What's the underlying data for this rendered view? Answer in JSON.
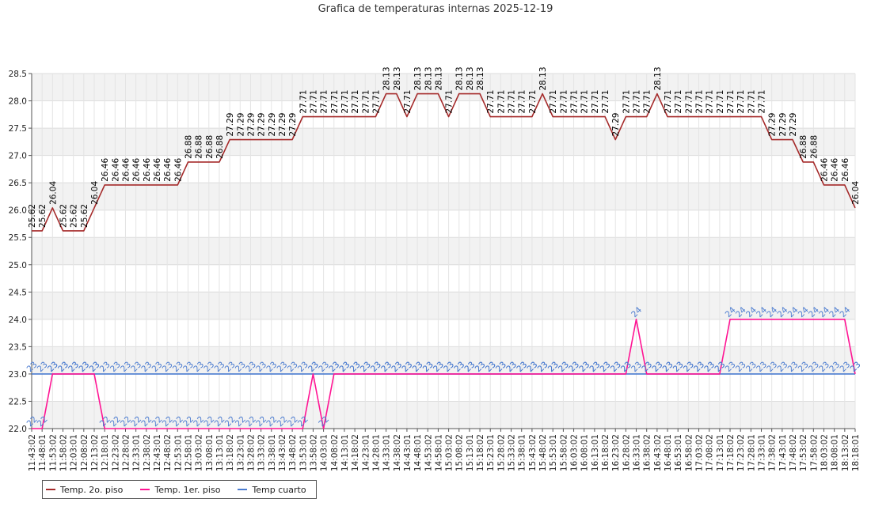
{
  "chart_data": {
    "type": "line",
    "title": "Grafica de temperaturas internas 2025-12-19",
    "xlabel": "",
    "ylabel": "",
    "ylim": [
      22.0,
      28.5
    ],
    "yticks": [
      "22.0",
      "22.5",
      "23.0",
      "23.5",
      "24.0",
      "24.5",
      "25.0",
      "25.5",
      "26.0",
      "26.5",
      "27.0",
      "27.5",
      "28.0",
      "28.5"
    ],
    "grid": true,
    "legend": "bottom-left",
    "x": [
      "11:43:02",
      "11:48:01",
      "11:53:02",
      "11:58:02",
      "12:03:01",
      "12:08:02",
      "12:13:02",
      "12:18:01",
      "12:23:02",
      "12:28:02",
      "12:33:01",
      "12:38:02",
      "12:43:01",
      "12:48:02",
      "12:53:01",
      "12:58:01",
      "13:03:02",
      "13:08:01",
      "13:13:01",
      "13:18:02",
      "13:23:01",
      "13:28:02",
      "13:33:02",
      "13:38:01",
      "13:43:02",
      "13:48:02",
      "13:53:01",
      "13:58:02",
      "14:03:01",
      "14:08:02",
      "14:13:01",
      "14:18:02",
      "14:23:01",
      "14:28:01",
      "14:33:01",
      "14:38:02",
      "14:43:01",
      "14:48:01",
      "14:53:02",
      "14:58:01",
      "15:03:02",
      "15:08:02",
      "15:13:01",
      "15:18:02",
      "15:23:01",
      "15:28:02",
      "15:33:02",
      "15:38:01",
      "15:43:02",
      "15:48:02",
      "15:53:01",
      "15:58:02",
      "16:03:02",
      "16:08:01",
      "16:13:01",
      "16:18:02",
      "16:23:02",
      "16:28:02",
      "16:33:01",
      "16:38:02",
      "16:43:02",
      "16:48:01",
      "16:53:01",
      "16:58:02",
      "17:03:02",
      "17:08:02",
      "17:13:01",
      "17:18:02",
      "17:23:02",
      "17:28:01",
      "17:33:01",
      "17:38:02",
      "17:43:01",
      "17:48:02",
      "17:53:02",
      "17:58:02",
      "18:03:02",
      "18:08:01",
      "18:13:02",
      "18:18:01"
    ],
    "series": [
      {
        "name": "Temp. 2o. piso",
        "color": "#a52a2a",
        "label_color": "#000000",
        "values": [
          25.62,
          25.62,
          26.04,
          25.62,
          25.62,
          25.62,
          26.04,
          26.46,
          26.46,
          26.46,
          26.46,
          26.46,
          26.46,
          26.46,
          26.46,
          26.88,
          26.88,
          26.88,
          26.88,
          27.29,
          27.29,
          27.29,
          27.29,
          27.29,
          27.29,
          27.29,
          27.71,
          27.71,
          27.71,
          27.71,
          27.71,
          27.71,
          27.71,
          27.71,
          28.13,
          28.13,
          27.71,
          28.13,
          28.13,
          28.13,
          27.71,
          28.13,
          28.13,
          28.13,
          27.71,
          27.71,
          27.71,
          27.71,
          27.71,
          28.13,
          27.71,
          27.71,
          27.71,
          27.71,
          27.71,
          27.71,
          27.29,
          27.71,
          27.71,
          27.71,
          28.13,
          27.71,
          27.71,
          27.71,
          27.71,
          27.71,
          27.71,
          27.71,
          27.71,
          27.71,
          27.71,
          27.29,
          27.29,
          27.29,
          26.88,
          26.88,
          26.46,
          26.46,
          26.46,
          26.04
        ],
        "labels": [
          "25.62",
          "25.62",
          "26.04",
          "25.62",
          "25.62",
          "25.62",
          "26.04",
          "26.46",
          "26.46",
          "26.46",
          "26.46",
          "26.46",
          "26.46",
          "26.46",
          "26.46",
          "26.88",
          "26.88",
          "26.88",
          "26.88",
          "27.29",
          "27.29",
          "27.29",
          "27.29",
          "27.29",
          "27.29",
          "27.29",
          "27.71",
          "27.71",
          "27.71",
          "27.71",
          "27.71",
          "27.71",
          "27.71",
          "27.71",
          "28.13",
          "28.13",
          "27.71",
          "28.13",
          "28.13",
          "28.13",
          "27.71",
          "28.13",
          "28.13",
          "28.13",
          "27.71",
          "27.71",
          "27.71",
          "27.71",
          "27.71",
          "28.13",
          "27.71",
          "27.71",
          "27.71",
          "27.71",
          "27.71",
          "27.71",
          "27.29",
          "27.71",
          "27.71",
          "27.71",
          "28.13",
          "27.71",
          "27.71",
          "27.71",
          "27.71",
          "27.71",
          "27.71",
          "27.71",
          "27.71",
          "27.71",
          "27.71",
          "27.29",
          "27.29",
          "27.29",
          "26.88",
          "26.88",
          "26.46",
          "26.46",
          "26.46",
          "26.04"
        ]
      },
      {
        "name": "Temp. 1er. piso",
        "color": "#ff1493",
        "label_color": "#4a7bd0",
        "values": [
          22,
          22,
          23,
          23,
          23,
          23,
          23,
          22,
          22,
          22,
          22,
          22,
          22,
          22,
          22,
          22,
          22,
          22,
          22,
          22,
          22,
          22,
          22,
          22,
          22,
          22,
          22,
          23,
          22,
          23,
          23,
          23,
          23,
          23,
          23,
          23,
          23,
          23,
          23,
          23,
          23,
          23,
          23,
          23,
          23,
          23,
          23,
          23,
          23,
          23,
          23,
          23,
          23,
          23,
          23,
          23,
          23,
          23,
          24,
          23,
          23,
          23,
          23,
          23,
          23,
          23,
          23,
          24,
          24,
          24,
          24,
          24,
          24,
          24,
          24,
          24,
          24,
          24,
          24,
          23
        ],
        "labels": [
          "22",
          "22",
          "23",
          "23",
          "23",
          "23",
          "23",
          "22",
          "22",
          "22",
          "22",
          "22",
          "22",
          "22",
          "22",
          "22",
          "22",
          "22",
          "22",
          "22",
          "22",
          "22",
          "22",
          "22",
          "22",
          "22",
          "22",
          "23",
          "22",
          "23",
          "23",
          "23",
          "23",
          "23",
          "23",
          "23",
          "23",
          "23",
          "23",
          "23",
          "23",
          "23",
          "23",
          "23",
          "23",
          "23",
          "23",
          "23",
          "23",
          "23",
          "23",
          "23",
          "23",
          "23",
          "23",
          "23",
          "23",
          "23",
          "24",
          "23",
          "23",
          "23",
          "23",
          "23",
          "23",
          "23",
          "23",
          "24",
          "24",
          "24",
          "24",
          "24",
          "24",
          "24",
          "24",
          "24",
          "24",
          "24",
          "24",
          "23"
        ]
      },
      {
        "name": "Temp cuarto",
        "color": "#4a7bd0",
        "label_color": "#4a7bd0",
        "values": [
          23,
          23,
          23,
          23,
          23,
          23,
          23,
          23,
          23,
          23,
          23,
          23,
          23,
          23,
          23,
          23,
          23,
          23,
          23,
          23,
          23,
          23,
          23,
          23,
          23,
          23,
          23,
          23,
          23,
          23,
          23,
          23,
          23,
          23,
          23,
          23,
          23,
          23,
          23,
          23,
          23,
          23,
          23,
          23,
          23,
          23,
          23,
          23,
          23,
          23,
          23,
          23,
          23,
          23,
          23,
          23,
          23,
          23,
          23,
          23,
          23,
          23,
          23,
          23,
          23,
          23,
          23,
          23,
          23,
          23,
          23,
          23,
          23,
          23,
          23,
          23,
          23,
          23,
          23,
          23
        ],
        "labels": [
          "23",
          "23",
          "23",
          "23",
          "23",
          "23",
          "23",
          "23",
          "23",
          "23",
          "23",
          "23",
          "23",
          "23",
          "23",
          "23",
          "23",
          "23",
          "23",
          "23",
          "23",
          "23",
          "23",
          "23",
          "23",
          "23",
          "23",
          "23",
          "23",
          "23",
          "23",
          "23",
          "23",
          "23",
          "23",
          "23",
          "23",
          "23",
          "23",
          "23",
          "23",
          "23",
          "23",
          "23",
          "23",
          "23",
          "23",
          "23",
          "23",
          "23",
          "23",
          "23",
          "23",
          "23",
          "23",
          "23",
          "23",
          "23",
          "23",
          "23",
          "23",
          "23",
          "23",
          "23",
          "23",
          "23",
          "23",
          "23",
          "23",
          "23",
          "23",
          "23",
          "23",
          "23",
          "23",
          "23",
          "23",
          "23",
          "23",
          "23"
        ]
      }
    ]
  }
}
